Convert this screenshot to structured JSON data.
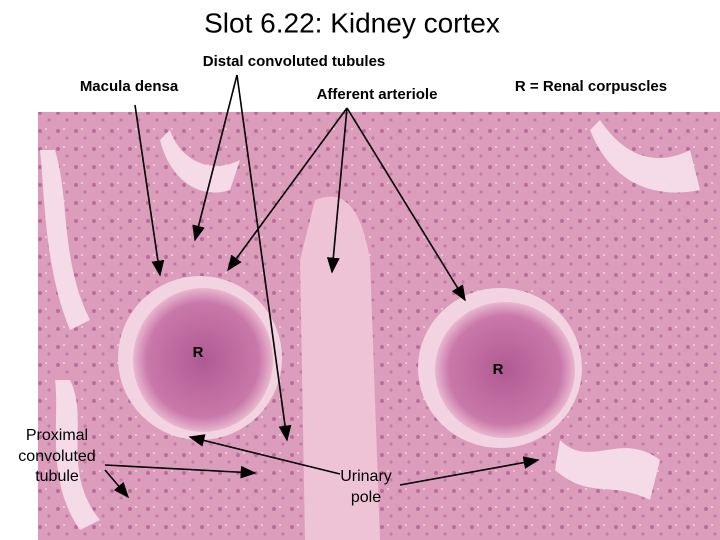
{
  "title": "Slot 6.22: Kidney cortex",
  "labels": {
    "distal": "Distal convoluted tubules",
    "macula": "Macula densa",
    "afferent": "Afferent arteriole",
    "renal": "R = Renal corpuscles",
    "r_left": "R",
    "r_right": "R",
    "proximal": [
      "Proximal",
      "convoluted",
      "tubule"
    ],
    "urinary": [
      "Urinary",
      "pole"
    ]
  }
}
